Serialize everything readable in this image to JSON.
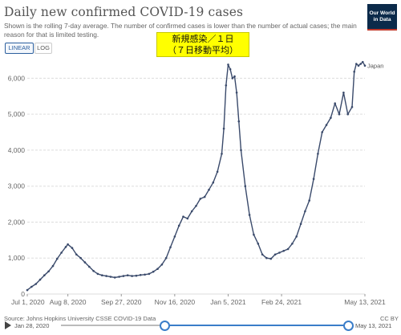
{
  "header": {
    "title": "Daily new confirmed COVID-19 cases",
    "subtitle": "Shown is the rolling 7-day average. The number of confirmed cases is lower than the number of actual cases; the main reason for that is limited testing.",
    "logo_line1": "Our World",
    "logo_line2": "in Data"
  },
  "toggles": {
    "linear": "LINEAR",
    "log": "LOG"
  },
  "annotation": {
    "line1": "新規感染／１日",
    "line2": "（７日移動平均）"
  },
  "footer": {
    "source": "Source: Johns Hopkins University CSSE COVID-19 Data",
    "license": "CC BY"
  },
  "timeline": {
    "start_label": "Jan 28, 2020",
    "end_label": "May 13, 2021",
    "selected_start": "Jul 1, 2020",
    "selected_end": "May 13, 2021"
  },
  "colors": {
    "line": "#3a4a6b",
    "accent": "#2c5f9e",
    "annotation_bg": "#ffff00"
  },
  "chart_data": {
    "type": "line",
    "title": "Daily new confirmed COVID-19 cases",
    "xlabel": "",
    "ylabel": "",
    "x_ticks": [
      "Jul 1, 2020",
      "Aug 8, 2020",
      "Sep 27, 2020",
      "Nov 16, 2020",
      "Jan 5, 2021",
      "Feb 24, 2021",
      "May 13, 2021"
    ],
    "x_tick_days": [
      0,
      38,
      88,
      138,
      188,
      238,
      316
    ],
    "y_ticks": [
      0,
      1000,
      2000,
      3000,
      4000,
      5000,
      6000
    ],
    "y_tick_labels": [
      "0",
      "1,000",
      "2,000",
      "3,000",
      "4,000",
      "5,000",
      "6,000"
    ],
    "ylim": [
      0,
      6500
    ],
    "xlim": [
      0,
      316
    ],
    "grid": true,
    "series": [
      {
        "name": "Japan",
        "x": [
          "Jul 1, 2020",
          "Jul 5, 2020",
          "Jul 9, 2020",
          "Jul 13, 2020",
          "Jul 17, 2020",
          "Jul 21, 2020",
          "Jul 25, 2020",
          "Jul 29, 2020",
          "Aug 2, 2020",
          "Aug 6, 2020",
          "Aug 8, 2020",
          "Aug 12, 2020",
          "Aug 16, 2020",
          "Aug 20, 2020",
          "Aug 24, 2020",
          "Aug 28, 2020",
          "Sep 1, 2020",
          "Sep 5, 2020",
          "Sep 9, 2020",
          "Sep 13, 2020",
          "Sep 17, 2020",
          "Sep 21, 2020",
          "Sep 25, 2020",
          "Sep 29, 2020",
          "Oct 3, 2020",
          "Oct 7, 2020",
          "Oct 11, 2020",
          "Oct 15, 2020",
          "Oct 19, 2020",
          "Oct 23, 2020",
          "Oct 27, 2020",
          "Oct 31, 2020",
          "Nov 4, 2020",
          "Nov 8, 2020",
          "Nov 12, 2020",
          "Nov 16, 2020",
          "Nov 20, 2020",
          "Nov 24, 2020",
          "Nov 28, 2020",
          "Dec 2, 2020",
          "Dec 6, 2020",
          "Dec 10, 2020",
          "Dec 14, 2020",
          "Dec 18, 2020",
          "Dec 22, 2020",
          "Dec 26, 2020",
          "Dec 30, 2020",
          "Jan 1, 2021",
          "Jan 3, 2021",
          "Jan 5, 2021",
          "Jan 7, 2021",
          "Jan 9, 2021",
          "Jan 11, 2021",
          "Jan 13, 2021",
          "Jan 15, 2021",
          "Jan 17, 2021",
          "Jan 21, 2021",
          "Jan 25, 2021",
          "Jan 29, 2021",
          "Feb 2, 2021",
          "Feb 6, 2021",
          "Feb 10, 2021",
          "Feb 14, 2021",
          "Feb 18, 2021",
          "Feb 22, 2021",
          "Feb 26, 2021",
          "Mar 2, 2021",
          "Mar 6, 2021",
          "Mar 10, 2021",
          "Mar 14, 2021",
          "Mar 18, 2021",
          "Mar 22, 2021",
          "Mar 26, 2021",
          "Mar 30, 2021",
          "Apr 3, 2021",
          "Apr 7, 2021",
          "Apr 11, 2021",
          "Apr 15, 2021",
          "Apr 19, 2021",
          "Apr 23, 2021",
          "Apr 27, 2021",
          "May 1, 2021",
          "May 3, 2021",
          "May 5, 2021",
          "May 7, 2021",
          "May 9, 2021",
          "May 11, 2021",
          "May 13, 2021"
        ],
        "days": [
          0,
          4,
          8,
          12,
          16,
          20,
          24,
          28,
          32,
          36,
          38,
          42,
          46,
          50,
          54,
          58,
          62,
          66,
          70,
          74,
          78,
          82,
          86,
          90,
          94,
          98,
          102,
          106,
          110,
          114,
          118,
          122,
          126,
          130,
          134,
          138,
          142,
          146,
          150,
          154,
          158,
          162,
          166,
          170,
          174,
          178,
          182,
          184,
          186,
          188,
          190,
          192,
          194,
          196,
          198,
          200,
          204,
          208,
          212,
          216,
          220,
          224,
          228,
          232,
          236,
          240,
          244,
          248,
          252,
          256,
          260,
          264,
          268,
          272,
          276,
          280,
          284,
          288,
          292,
          296,
          300,
          304,
          306,
          308,
          310,
          312,
          314,
          316
        ],
        "values": [
          110,
          200,
          280,
          400,
          520,
          630,
          780,
          980,
          1150,
          1310,
          1380,
          1280,
          1100,
          1000,
          880,
          760,
          640,
          560,
          520,
          500,
          480,
          460,
          480,
          500,
          520,
          500,
          510,
          530,
          540,
          560,
          620,
          700,
          820,
          1000,
          1300,
          1600,
          1900,
          2150,
          2100,
          2300,
          2450,
          2650,
          2700,
          2900,
          3100,
          3400,
          3900,
          4600,
          5800,
          6380,
          6250,
          6000,
          6050,
          5600,
          4800,
          4000,
          3000,
          2200,
          1650,
          1400,
          1100,
          1000,
          980,
          1100,
          1150,
          1200,
          1250,
          1400,
          1600,
          1950,
          2300,
          2600,
          3200,
          3900,
          4500,
          4700,
          4900,
          5300,
          5000,
          5600,
          5000,
          5200,
          6180,
          6400,
          6350,
          6400,
          6450,
          6350
        ]
      }
    ]
  }
}
